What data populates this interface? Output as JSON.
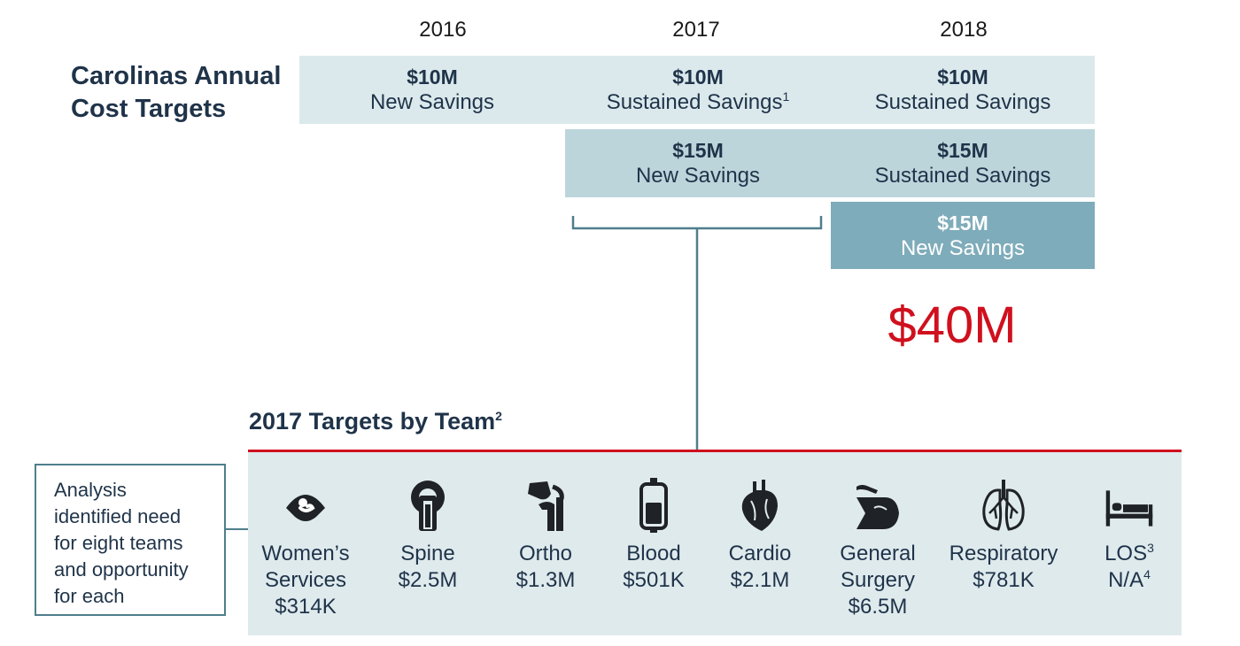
{
  "years": [
    "2016",
    "2017",
    "2018"
  ],
  "title": "Carolinas Annual\nCost Targets",
  "boxes": [
    {
      "amount": "$10M",
      "desc": "New Savings",
      "sup": ""
    },
    {
      "amount": "$10M",
      "desc": "Sustained Savings",
      "sup": "1"
    },
    {
      "amount": "$10M",
      "desc": "Sustained Savings",
      "sup": ""
    },
    {
      "amount": "$15M",
      "desc": "New Savings",
      "sup": ""
    },
    {
      "amount": "$15M",
      "desc": "Sustained Savings",
      "sup": ""
    },
    {
      "amount": "$15M",
      "desc": "New Savings",
      "sup": ""
    }
  ],
  "total": "$40M",
  "section_title": "2017 Targets by Team",
  "section_title_sup": "2",
  "note": "Analysis\nidentified need\nfor eight  teams\nand opportunity\nfor each",
  "teams": [
    {
      "name": "Women’s\nServices",
      "value": "$314K",
      "name_sup": "",
      "value_sup": "",
      "icon": "ultrasound-icon"
    },
    {
      "name": "Spine",
      "value": "$2.5M",
      "name_sup": "",
      "value_sup": "",
      "icon": "mri-scanner-icon"
    },
    {
      "name": "Ortho",
      "value": "$1.3M",
      "name_sup": "",
      "value_sup": "",
      "icon": "knee-joint-icon"
    },
    {
      "name": "Blood",
      "value": "$501K",
      "name_sup": "",
      "value_sup": "",
      "icon": "blood-bag-icon"
    },
    {
      "name": "Cardio",
      "value": "$2.1M",
      "name_sup": "",
      "value_sup": "",
      "icon": "heart-icon"
    },
    {
      "name": "General\nSurgery",
      "value": "$6.5M",
      "name_sup": "",
      "value_sup": "",
      "icon": "surgery-icon"
    },
    {
      "name": "Respiratory",
      "value": "$781K",
      "name_sup": "",
      "value_sup": "",
      "icon": "lungs-icon"
    },
    {
      "name": "LOS",
      "value": "N/A",
      "name_sup": "3",
      "value_sup": "4",
      "icon": "hospital-bed-icon"
    }
  ],
  "colors": {
    "accent_red": "#d0101e",
    "navy": "#1f3349",
    "teal_light": "#dbe9ec",
    "teal_mid": "#bcd5db",
    "teal_dark": "#7facba",
    "connector": "#4f7e8c"
  }
}
